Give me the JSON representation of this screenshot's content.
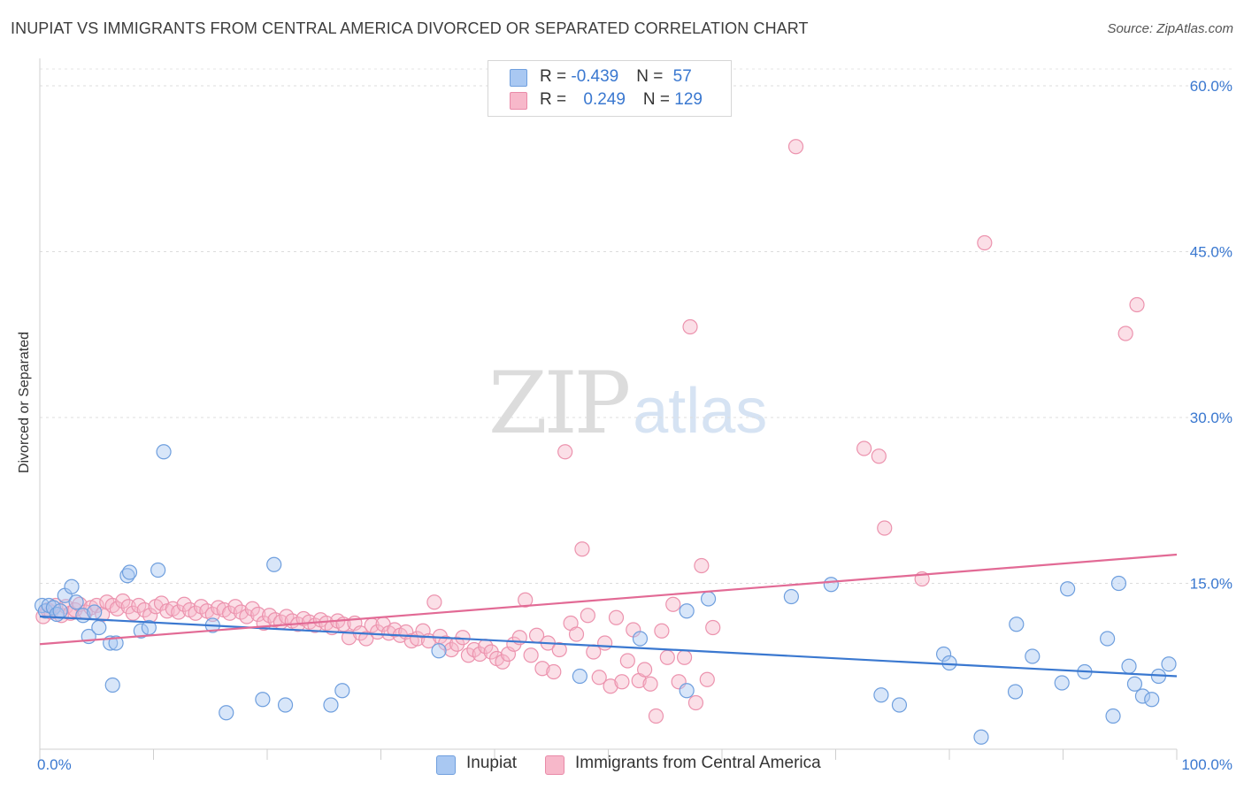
{
  "header": {
    "title": "INUPIAT VS IMMIGRANTS FROM CENTRAL AMERICA DIVORCED OR SEPARATED CORRELATION CHART",
    "source": "Source: ZipAtlas.com"
  },
  "watermark": {
    "zip": "ZIP",
    "atlas": "atlas"
  },
  "legend": {
    "rows": [
      {
        "r_label": "R = ",
        "r_value": "-0.439",
        "n_label": "N = ",
        "n_value": "57",
        "color": "#a9c8f2"
      },
      {
        "r_label": "R = ",
        "r_value": "0.249",
        "n_label": "N = ",
        "n_value": "129",
        "color": "#f7b8ca"
      }
    ]
  },
  "bottom_legend": {
    "items": [
      {
        "label": "Inupiat",
        "color": "#a9c8f2"
      },
      {
        "label": "Immigrants from Central America",
        "color": "#f7b8ca"
      }
    ]
  },
  "chart_data": {
    "type": "scatter",
    "ylabel": "Divorced or Separated",
    "xlim": [
      0,
      100
    ],
    "ylim": [
      0,
      60
    ],
    "x_tick_labels": [
      {
        "value": 0,
        "label": "0.0%"
      },
      {
        "value": 100,
        "label": "100.0%"
      }
    ],
    "y_tick_labels": [
      {
        "value": 15,
        "label": "15.0%"
      },
      {
        "value": 30,
        "label": "30.0%"
      },
      {
        "value": 45,
        "label": "45.0%"
      },
      {
        "value": 60,
        "label": "60.0%"
      }
    ],
    "grid": true,
    "colors": {
      "blue": "#3a78d0",
      "pink": "#e26a95",
      "blue_fill": "#a9c8f2",
      "pink_fill": "#f7b8ca"
    },
    "series": [
      {
        "name": "Inupiat",
        "stats": {
          "R": -0.439,
          "N": 57
        },
        "trend": {
          "x": [
            0,
            100
          ],
          "y": [
            12.0,
            6.6
          ]
        },
        "points": [
          [
            0.2,
            13.0
          ],
          [
            0.5,
            12.5
          ],
          [
            0.8,
            13.0
          ],
          [
            1.2,
            12.8
          ],
          [
            1.5,
            12.2
          ],
          [
            1.8,
            12.5
          ],
          [
            2.2,
            13.9
          ],
          [
            2.8,
            14.7
          ],
          [
            3.2,
            13.3
          ],
          [
            3.8,
            12.1
          ],
          [
            4.3,
            10.2
          ],
          [
            4.8,
            12.4
          ],
          [
            5.2,
            11.0
          ],
          [
            6.2,
            9.6
          ],
          [
            6.4,
            5.8
          ],
          [
            6.7,
            9.6
          ],
          [
            7.7,
            15.7
          ],
          [
            7.9,
            16.0
          ],
          [
            8.9,
            10.7
          ],
          [
            9.6,
            11.0
          ],
          [
            10.4,
            16.2
          ],
          [
            10.9,
            26.9
          ],
          [
            15.2,
            11.2
          ],
          [
            16.4,
            3.3
          ],
          [
            19.6,
            4.5
          ],
          [
            20.6,
            16.7
          ],
          [
            21.6,
            4.0
          ],
          [
            25.6,
            4.0
          ],
          [
            26.6,
            5.3
          ],
          [
            35.1,
            8.9
          ],
          [
            47.5,
            6.6
          ],
          [
            52.8,
            10.0
          ],
          [
            56.9,
            5.3
          ],
          [
            56.9,
            12.5
          ],
          [
            58.8,
            13.6
          ],
          [
            66.1,
            13.8
          ],
          [
            69.6,
            14.9
          ],
          [
            74.0,
            4.9
          ],
          [
            75.6,
            4.0
          ],
          [
            79.5,
            8.6
          ],
          [
            80.0,
            7.8
          ],
          [
            82.8,
            1.1
          ],
          [
            85.8,
            5.2
          ],
          [
            85.9,
            11.3
          ],
          [
            87.3,
            8.4
          ],
          [
            89.9,
            6.0
          ],
          [
            90.4,
            14.5
          ],
          [
            91.9,
            7.0
          ],
          [
            93.9,
            10.0
          ],
          [
            94.4,
            3.0
          ],
          [
            94.9,
            15.0
          ],
          [
            95.8,
            7.5
          ],
          [
            96.3,
            5.9
          ],
          [
            97.0,
            4.8
          ],
          [
            97.8,
            4.5
          ],
          [
            98.4,
            6.6
          ],
          [
            99.3,
            7.7
          ]
        ]
      },
      {
        "name": "Immigrants from Central America",
        "stats": {
          "R": 0.249,
          "N": 129
        },
        "trend": {
          "x": [
            0,
            100
          ],
          "y": [
            9.5,
            17.6
          ]
        },
        "points": [
          [
            0.3,
            12.0
          ],
          [
            0.7,
            12.6
          ],
          [
            1.0,
            12.4
          ],
          [
            1.4,
            13.0
          ],
          [
            1.9,
            12.1
          ],
          [
            2.3,
            12.9
          ],
          [
            2.7,
            12.3
          ],
          [
            3.1,
            12.6
          ],
          [
            3.5,
            13.1
          ],
          [
            4.0,
            12.4
          ],
          [
            4.5,
            12.8
          ],
          [
            5.0,
            13.0
          ],
          [
            5.5,
            12.2
          ],
          [
            5.9,
            13.3
          ],
          [
            6.4,
            13.0
          ],
          [
            6.8,
            12.7
          ],
          [
            7.3,
            13.4
          ],
          [
            7.8,
            12.9
          ],
          [
            8.2,
            12.3
          ],
          [
            8.7,
            13.0
          ],
          [
            9.2,
            12.6
          ],
          [
            9.7,
            12.1
          ],
          [
            10.2,
            12.9
          ],
          [
            10.7,
            13.2
          ],
          [
            11.2,
            12.5
          ],
          [
            11.7,
            12.7
          ],
          [
            12.2,
            12.4
          ],
          [
            12.7,
            13.1
          ],
          [
            13.2,
            12.6
          ],
          [
            13.7,
            12.3
          ],
          [
            14.2,
            12.9
          ],
          [
            14.7,
            12.5
          ],
          [
            15.2,
            12.2
          ],
          [
            15.7,
            12.8
          ],
          [
            16.2,
            12.6
          ],
          [
            16.7,
            12.3
          ],
          [
            17.2,
            12.9
          ],
          [
            17.7,
            12.4
          ],
          [
            18.2,
            12.0
          ],
          [
            18.7,
            12.7
          ],
          [
            19.2,
            12.2
          ],
          [
            19.7,
            11.4
          ],
          [
            20.2,
            12.1
          ],
          [
            20.7,
            11.7
          ],
          [
            21.2,
            11.5
          ],
          [
            21.7,
            12.0
          ],
          [
            22.2,
            11.6
          ],
          [
            22.7,
            11.3
          ],
          [
            23.2,
            11.8
          ],
          [
            23.7,
            11.5
          ],
          [
            24.2,
            11.2
          ],
          [
            24.7,
            11.7
          ],
          [
            25.2,
            11.4
          ],
          [
            25.7,
            11.0
          ],
          [
            26.2,
            11.6
          ],
          [
            26.7,
            11.3
          ],
          [
            27.2,
            10.1
          ],
          [
            27.7,
            11.4
          ],
          [
            28.2,
            10.5
          ],
          [
            28.7,
            10.0
          ],
          [
            29.2,
            11.2
          ],
          [
            29.7,
            10.6
          ],
          [
            30.2,
            11.3
          ],
          [
            30.7,
            10.5
          ],
          [
            31.2,
            10.8
          ],
          [
            31.7,
            10.3
          ],
          [
            32.2,
            10.6
          ],
          [
            32.7,
            9.8
          ],
          [
            33.2,
            10.0
          ],
          [
            33.7,
            10.7
          ],
          [
            34.2,
            9.8
          ],
          [
            34.7,
            13.3
          ],
          [
            35.2,
            10.2
          ],
          [
            35.7,
            9.6
          ],
          [
            36.2,
            9.0
          ],
          [
            36.7,
            9.5
          ],
          [
            37.2,
            10.1
          ],
          [
            37.7,
            8.5
          ],
          [
            38.2,
            9.0
          ],
          [
            38.7,
            8.6
          ],
          [
            39.2,
            9.3
          ],
          [
            39.7,
            8.8
          ],
          [
            40.2,
            8.2
          ],
          [
            40.7,
            7.9
          ],
          [
            41.2,
            8.6
          ],
          [
            41.7,
            9.5
          ],
          [
            42.2,
            10.1
          ],
          [
            42.7,
            13.5
          ],
          [
            43.2,
            8.5
          ],
          [
            43.7,
            10.3
          ],
          [
            44.2,
            7.3
          ],
          [
            44.7,
            9.6
          ],
          [
            45.2,
            7.0
          ],
          [
            45.7,
            9.0
          ],
          [
            46.2,
            26.9
          ],
          [
            46.7,
            11.4
          ],
          [
            47.2,
            10.4
          ],
          [
            47.7,
            18.1
          ],
          [
            48.2,
            12.1
          ],
          [
            48.7,
            8.8
          ],
          [
            49.2,
            6.5
          ],
          [
            49.7,
            9.6
          ],
          [
            50.2,
            5.7
          ],
          [
            50.7,
            11.9
          ],
          [
            51.2,
            6.1
          ],
          [
            51.7,
            8.0
          ],
          [
            52.2,
            10.8
          ],
          [
            52.7,
            6.2
          ],
          [
            53.2,
            7.2
          ],
          [
            53.7,
            5.9
          ],
          [
            54.2,
            3.0
          ],
          [
            54.7,
            10.7
          ],
          [
            55.2,
            8.3
          ],
          [
            55.7,
            13.1
          ],
          [
            56.2,
            6.1
          ],
          [
            56.7,
            8.3
          ],
          [
            57.2,
            38.2
          ],
          [
            57.7,
            4.2
          ],
          [
            58.2,
            16.6
          ],
          [
            58.7,
            6.3
          ],
          [
            59.2,
            11.0
          ],
          [
            66.5,
            54.5
          ],
          [
            72.5,
            27.2
          ],
          [
            73.8,
            26.5
          ],
          [
            74.3,
            20.0
          ],
          [
            77.6,
            15.4
          ],
          [
            83.1,
            45.8
          ],
          [
            95.5,
            37.6
          ],
          [
            96.5,
            40.2
          ]
        ]
      }
    ]
  }
}
